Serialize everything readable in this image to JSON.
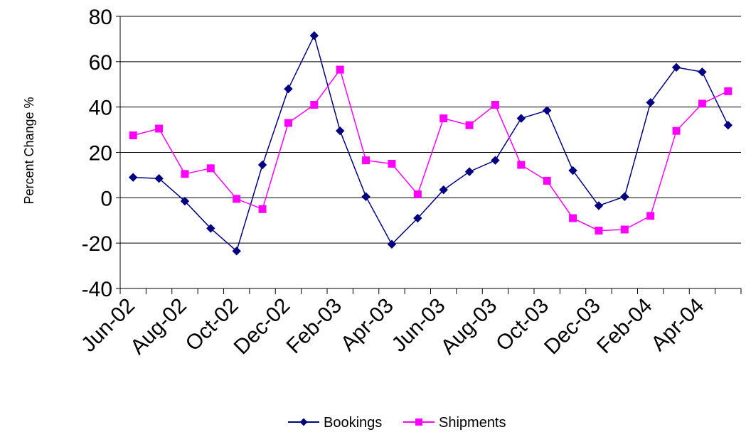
{
  "chart_data": {
    "type": "line",
    "title": "",
    "xlabel": "",
    "ylabel": "Percent Change %",
    "ylim": [
      -40,
      80
    ],
    "yticks": [
      80,
      60,
      40,
      20,
      0,
      -20,
      -40
    ],
    "y_tick_labels": [
      "80",
      "60",
      "40",
      "20",
      "0",
      "-20",
      "-40"
    ],
    "grid": true,
    "legend_position": "bottom-center",
    "x_tick_labels": [
      "Jun-02",
      "Aug-02",
      "Oct-02",
      "Dec-02",
      "Feb-03",
      "Apr-03",
      "Jun-03",
      "Aug-03",
      "Oct-03",
      "Dec-03",
      "Feb-04",
      "Apr-04"
    ],
    "x": [
      "Jun-02",
      "Jul-02",
      "Aug-02",
      "Sep-02",
      "Oct-02",
      "Nov-02",
      "Dec-02",
      "Jan-03",
      "Feb-03",
      "Mar-03",
      "Apr-03",
      "May-03",
      "Jun-03",
      "Jul-03",
      "Aug-03",
      "Sep-03",
      "Oct-03",
      "Nov-03",
      "Dec-03",
      "Jan-04",
      "Feb-04",
      "Mar-04",
      "Apr-04",
      "May-04"
    ],
    "series": [
      {
        "name": "Bookings",
        "color": "#000080",
        "marker": "diamond",
        "values": [
          9,
          8.5,
          -1.5,
          -13.5,
          -23.5,
          14.5,
          48,
          71.5,
          29.5,
          0.5,
          -20.5,
          -9,
          3.5,
          11.5,
          16.5,
          35,
          38.5,
          12,
          -3.5,
          0.5,
          42,
          57.5,
          55.5,
          32
        ]
      },
      {
        "name": "Shipments",
        "color": "#FF00FF",
        "marker": "square",
        "values": [
          27.5,
          30.5,
          10.5,
          13,
          -0.5,
          -5,
          33,
          41,
          56.5,
          16.5,
          15,
          1.5,
          35,
          32,
          41,
          14.5,
          7.5,
          -9,
          -14.5,
          -14,
          -8,
          29.5,
          41.5,
          47
        ]
      }
    ]
  }
}
